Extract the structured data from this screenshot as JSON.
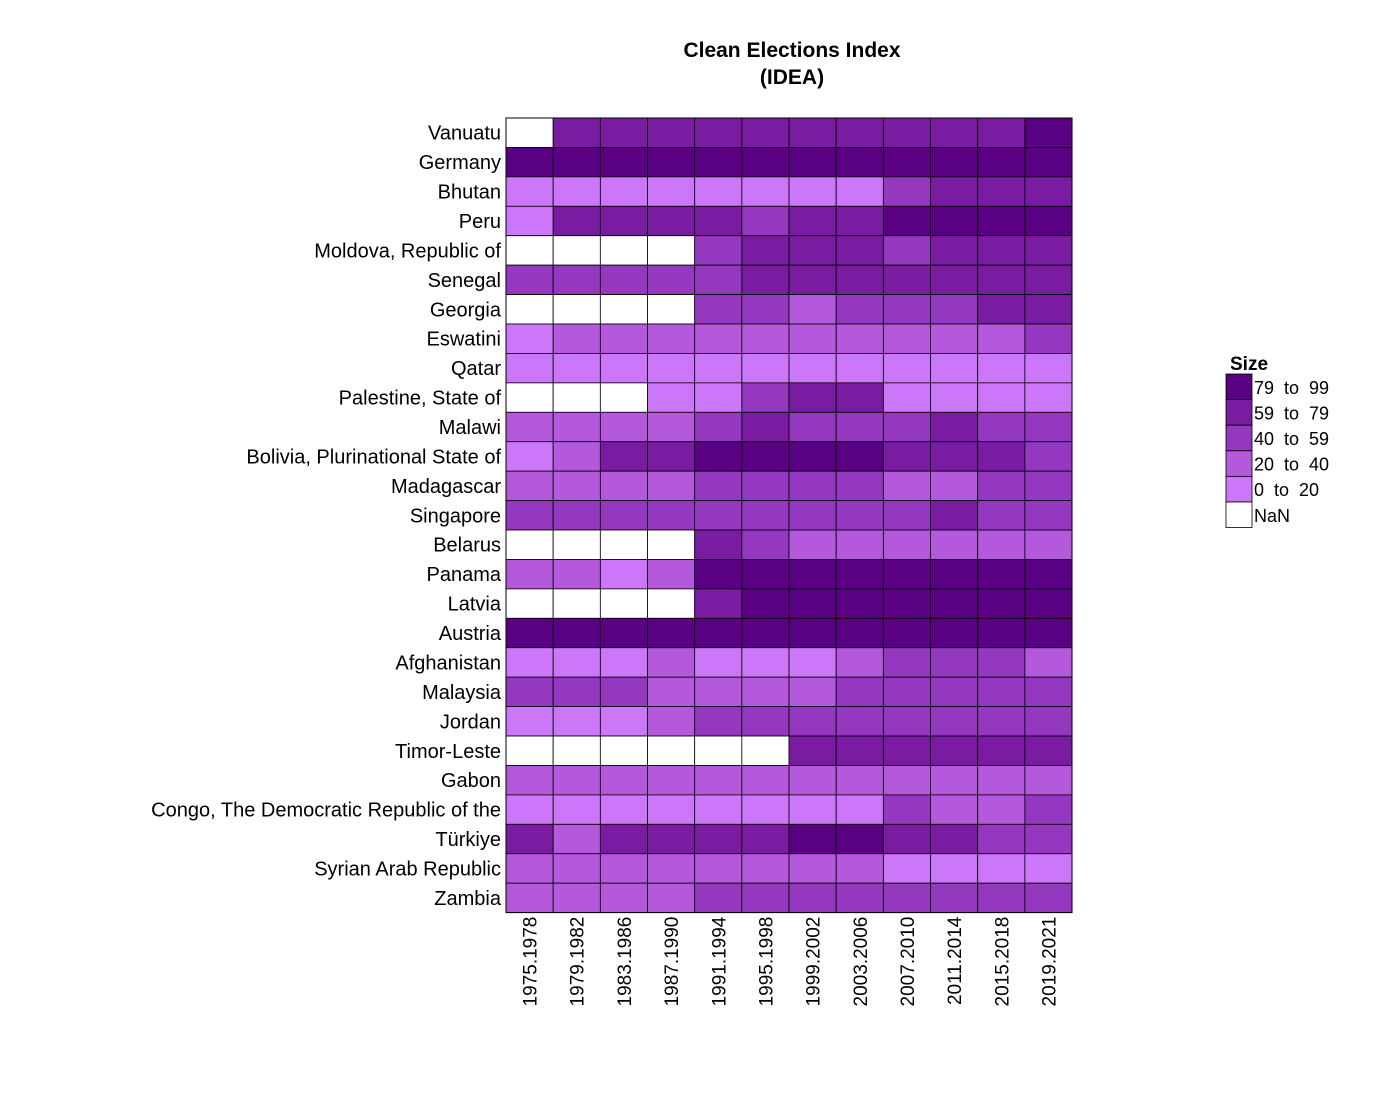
{
  "chart_data": {
    "type": "heatmap",
    "title": [
      "Clean Elections Index",
      "(IDEA)"
    ],
    "columns": [
      "1975.1978",
      "1979.1982",
      "1983.1986",
      "1987.1990",
      "1991.1994",
      "1995.1998",
      "1999.2002",
      "2003.2006",
      "2007.2010",
      "2011.2014",
      "2015.2018",
      "2019.2021"
    ],
    "rows": [
      "Vanuatu",
      "Germany",
      "Bhutan",
      "Peru",
      "Moldova, Republic of",
      "Senegal",
      "Georgia",
      "Eswatini",
      "Qatar",
      "Palestine, State of",
      "Malawi",
      "Bolivia, Plurinational State of",
      "Madagascar",
      "Singapore",
      "Belarus",
      "Panama",
      "Latvia",
      "Austria",
      "Afghanistan",
      "Malaysia",
      "Jordan",
      "Timor-Leste",
      "Gabon",
      "Congo, The Democratic Republic of the",
      "Türkiye",
      "Syrian Arab Republic",
      "Zambia"
    ],
    "values": [
      [
        null,
        68,
        68,
        68,
        68,
        68,
        68,
        68,
        68,
        68,
        68,
        88
      ],
      [
        90,
        90,
        90,
        90,
        90,
        90,
        90,
        90,
        90,
        90,
        90,
        90
      ],
      [
        10,
        10,
        10,
        10,
        10,
        10,
        10,
        10,
        50,
        68,
        68,
        68
      ],
      [
        10,
        68,
        68,
        68,
        68,
        50,
        68,
        68,
        90,
        90,
        90,
        90
      ],
      [
        null,
        null,
        null,
        null,
        50,
        68,
        68,
        68,
        50,
        68,
        68,
        68
      ],
      [
        50,
        50,
        50,
        50,
        50,
        68,
        68,
        68,
        68,
        68,
        68,
        68
      ],
      [
        null,
        null,
        null,
        null,
        50,
        50,
        30,
        50,
        50,
        50,
        68,
        68
      ],
      [
        10,
        30,
        30,
        30,
        30,
        30,
        30,
        30,
        30,
        30,
        30,
        50
      ],
      [
        10,
        10,
        10,
        10,
        10,
        10,
        10,
        10,
        10,
        10,
        10,
        10
      ],
      [
        null,
        null,
        null,
        10,
        10,
        50,
        68,
        68,
        10,
        10,
        10,
        10
      ],
      [
        30,
        30,
        30,
        30,
        50,
        68,
        50,
        50,
        50,
        68,
        50,
        50
      ],
      [
        10,
        30,
        68,
        68,
        90,
        90,
        90,
        90,
        68,
        68,
        68,
        50
      ],
      [
        30,
        30,
        30,
        30,
        50,
        50,
        50,
        50,
        30,
        30,
        50,
        50
      ],
      [
        50,
        50,
        50,
        50,
        50,
        50,
        50,
        50,
        50,
        68,
        50,
        50
      ],
      [
        null,
        null,
        null,
        null,
        68,
        50,
        30,
        30,
        30,
        30,
        30,
        30
      ],
      [
        30,
        30,
        10,
        30,
        90,
        90,
        90,
        90,
        90,
        90,
        90,
        90
      ],
      [
        null,
        null,
        null,
        null,
        68,
        90,
        90,
        90,
        90,
        90,
        90,
        90
      ],
      [
        90,
        90,
        90,
        90,
        90,
        90,
        90,
        90,
        90,
        90,
        90,
        90
      ],
      [
        10,
        10,
        10,
        30,
        10,
        10,
        10,
        30,
        50,
        50,
        50,
        30
      ],
      [
        50,
        50,
        50,
        30,
        30,
        30,
        30,
        50,
        50,
        50,
        50,
        50
      ],
      [
        10,
        10,
        10,
        30,
        50,
        50,
        50,
        50,
        50,
        50,
        50,
        50
      ],
      [
        null,
        null,
        null,
        null,
        null,
        null,
        68,
        68,
        68,
        68,
        68,
        68
      ],
      [
        30,
        30,
        30,
        30,
        30,
        30,
        30,
        30,
        30,
        30,
        30,
        30
      ],
      [
        10,
        10,
        10,
        10,
        10,
        10,
        10,
        10,
        50,
        30,
        30,
        50
      ],
      [
        68,
        30,
        68,
        68,
        68,
        68,
        90,
        90,
        68,
        68,
        50,
        50
      ],
      [
        30,
        30,
        30,
        30,
        30,
        30,
        30,
        30,
        10,
        10,
        10,
        10
      ],
      [
        30,
        30,
        30,
        30,
        50,
        50,
        50,
        50,
        50,
        50,
        50,
        50
      ]
    ],
    "legend": {
      "title": "Size",
      "placement": "right",
      "bins": [
        {
          "label": "79  to  99",
          "color": "#5a0082"
        },
        {
          "label": "59  to  79",
          "color": "#7a1ca2"
        },
        {
          "label": "40  to  59",
          "color": "#9438c0"
        },
        {
          "label": "20  to  40",
          "color": "#b458dc"
        },
        {
          "label": "0  to  20",
          "color": "#cc76fa"
        },
        {
          "label": "NaN",
          "color": "#ffffff"
        }
      ]
    }
  }
}
